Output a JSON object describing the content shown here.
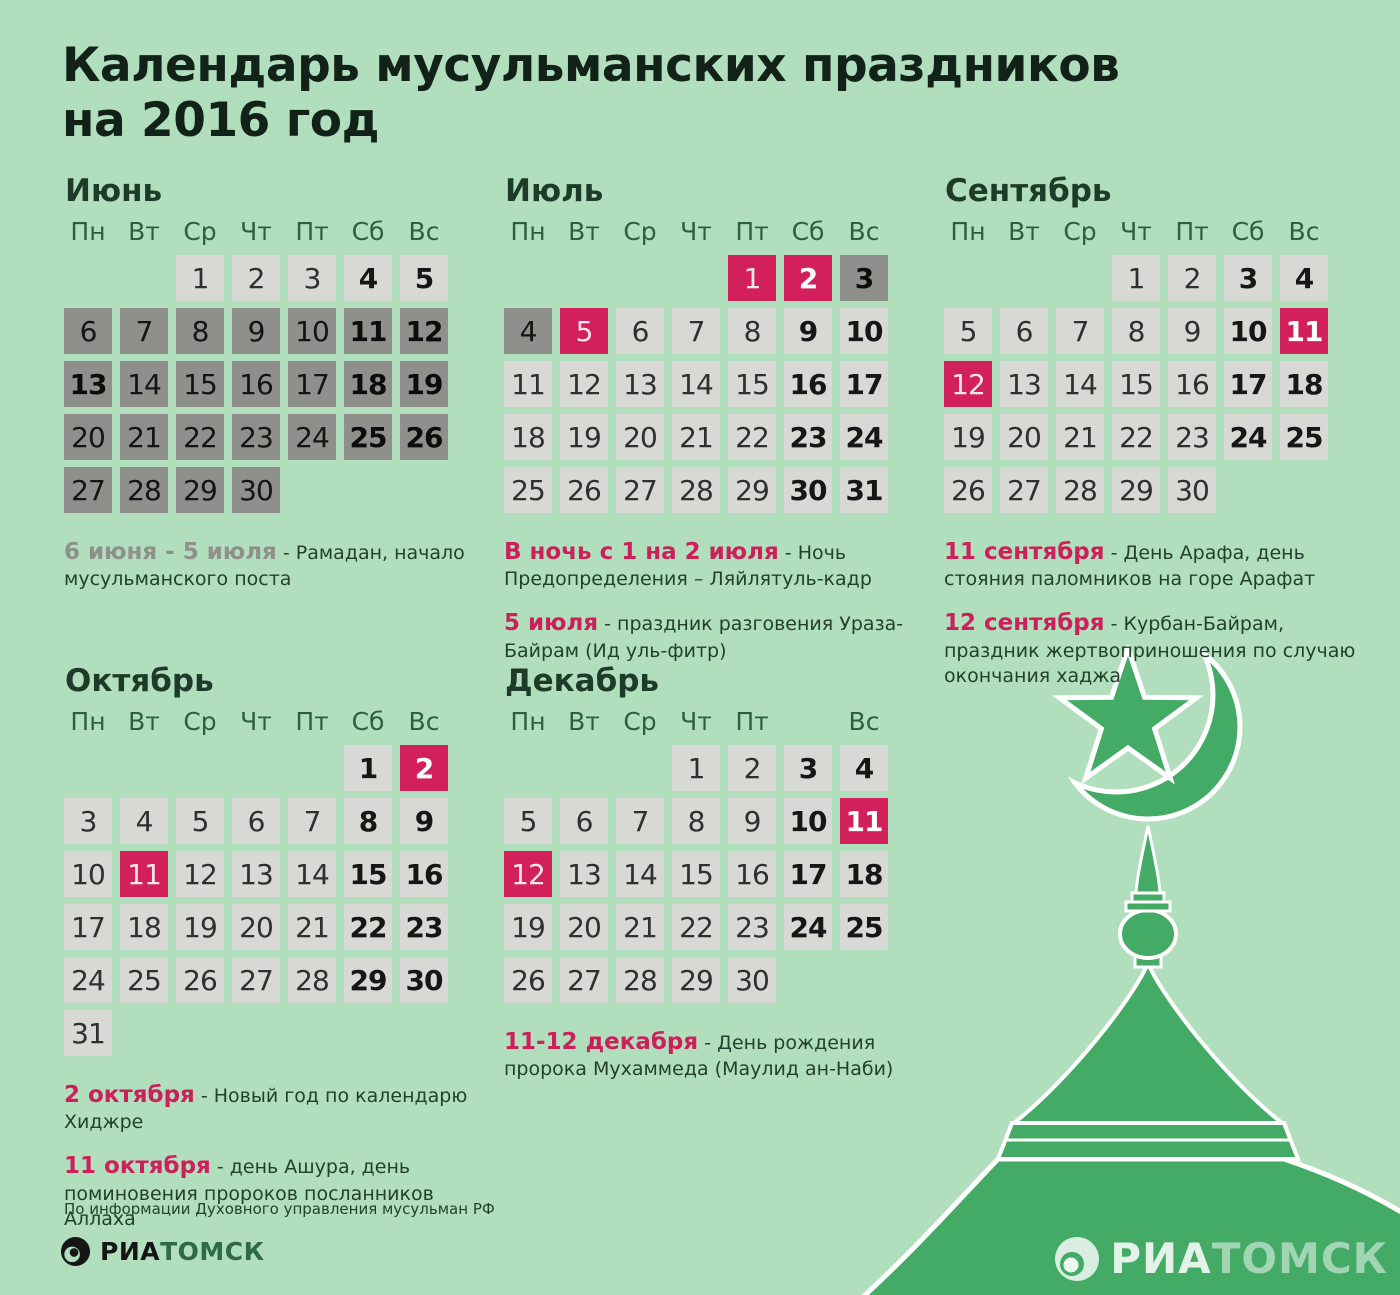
{
  "title": {
    "line1": "Календарь мусульманских праздников",
    "line2": "на 2016 год"
  },
  "note_separator": " - ",
  "source": "По информации Духовного управления мусульман РФ",
  "logo": {
    "ria": "РИА",
    "tomsk": "ТОМСК"
  },
  "watermark": {
    "ria": "РИА",
    "tomsk": "ТОМСК"
  },
  "colors": {
    "background": "#b1dfbe",
    "regular_day_cell": "#d8d8d4",
    "ramadan_day_cell": "#8f8f8c",
    "holiday_cell": "#d2205c",
    "mosque_green": "#44ab66",
    "note_date_red": "#cb2059",
    "note_date_gray": "#8f8f8c",
    "weekday_green": "#2c5f40"
  },
  "months": [
    {
      "id": "june",
      "name": "Июнь",
      "weekdays": [
        "Пн",
        "Вт",
        "Ср",
        "Чт",
        "Пт",
        "Сб",
        "Вс"
      ],
      "weeks": [
        [
          null,
          null,
          {
            "d": "1",
            "s": "light"
          },
          {
            "d": "2",
            "s": "light"
          },
          {
            "d": "3",
            "s": "light"
          },
          {
            "d": "4",
            "s": "light",
            "b": true
          },
          {
            "d": "5",
            "s": "light",
            "b": true
          }
        ],
        [
          {
            "d": "6",
            "s": "dark"
          },
          {
            "d": "7",
            "s": "dark"
          },
          {
            "d": "8",
            "s": "dark"
          },
          {
            "d": "9",
            "s": "dark"
          },
          {
            "d": "10",
            "s": "dark"
          },
          {
            "d": "11",
            "s": "dark",
            "b": true
          },
          {
            "d": "12",
            "s": "dark",
            "b": true
          }
        ],
        [
          {
            "d": "13",
            "s": "dark",
            "b": true
          },
          {
            "d": "14",
            "s": "dark"
          },
          {
            "d": "15",
            "s": "dark"
          },
          {
            "d": "16",
            "s": "dark"
          },
          {
            "d": "17",
            "s": "dark"
          },
          {
            "d": "18",
            "s": "dark",
            "b": true
          },
          {
            "d": "19",
            "s": "dark",
            "b": true
          }
        ],
        [
          {
            "d": "20",
            "s": "dark"
          },
          {
            "d": "21",
            "s": "dark"
          },
          {
            "d": "22",
            "s": "dark"
          },
          {
            "d": "23",
            "s": "dark"
          },
          {
            "d": "24",
            "s": "dark"
          },
          {
            "d": "25",
            "s": "dark",
            "b": true
          },
          {
            "d": "26",
            "s": "dark",
            "b": true
          }
        ],
        [
          {
            "d": "27",
            "s": "dark"
          },
          {
            "d": "28",
            "s": "dark"
          },
          {
            "d": "29",
            "s": "dark"
          },
          {
            "d": "30",
            "s": "dark"
          },
          null,
          null,
          null
        ]
      ],
      "notes": [
        {
          "date": "6 июня - 5 июля",
          "style": "gray",
          "text": "Рамадан, начало мусульманского поста"
        }
      ]
    },
    {
      "id": "july",
      "name": "Июль",
      "weekdays": [
        "Пн",
        "Вт",
        "Ср",
        "Чт",
        "Пт",
        "Сб",
        "Вс"
      ],
      "weeks": [
        [
          null,
          null,
          null,
          null,
          {
            "d": "1",
            "s": "red"
          },
          {
            "d": "2",
            "s": "red",
            "b": true
          },
          {
            "d": "3",
            "s": "dark",
            "b": true
          }
        ],
        [
          {
            "d": "4",
            "s": "dark"
          },
          {
            "d": "5",
            "s": "red"
          },
          {
            "d": "6",
            "s": "light"
          },
          {
            "d": "7",
            "s": "light"
          },
          {
            "d": "8",
            "s": "light"
          },
          {
            "d": "9",
            "s": "light",
            "b": true
          },
          {
            "d": "10",
            "s": "light",
            "b": true
          }
        ],
        [
          {
            "d": "11",
            "s": "light"
          },
          {
            "d": "12",
            "s": "light"
          },
          {
            "d": "13",
            "s": "light"
          },
          {
            "d": "14",
            "s": "light"
          },
          {
            "d": "15",
            "s": "light"
          },
          {
            "d": "16",
            "s": "light",
            "b": true
          },
          {
            "d": "17",
            "s": "light",
            "b": true
          }
        ],
        [
          {
            "d": "18",
            "s": "light"
          },
          {
            "d": "19",
            "s": "light"
          },
          {
            "d": "20",
            "s": "light"
          },
          {
            "d": "21",
            "s": "light"
          },
          {
            "d": "22",
            "s": "light"
          },
          {
            "d": "23",
            "s": "light",
            "b": true
          },
          {
            "d": "24",
            "s": "light",
            "b": true
          }
        ],
        [
          {
            "d": "25",
            "s": "light"
          },
          {
            "d": "26",
            "s": "light"
          },
          {
            "d": "27",
            "s": "light"
          },
          {
            "d": "28",
            "s": "light"
          },
          {
            "d": "29",
            "s": "light"
          },
          {
            "d": "30",
            "s": "light",
            "b": true
          },
          {
            "d": "31",
            "s": "light",
            "b": true
          }
        ]
      ],
      "notes": [
        {
          "date": "В ночь с 1 на 2 июля",
          "style": "red",
          "text": "Ночь Предопределения – Ляйлятуль-кадр"
        },
        {
          "date": "5 июля",
          "style": "red",
          "text": "праздник разговения Ураза-Байрам (Ид уль-фитр)"
        }
      ]
    },
    {
      "id": "september",
      "name": "Сентябрь",
      "weekdays": [
        "Пн",
        "Вт",
        "Ср",
        "Чт",
        "Пт",
        "Сб",
        "Вс"
      ],
      "weeks": [
        [
          null,
          null,
          null,
          {
            "d": "1",
            "s": "light"
          },
          {
            "d": "2",
            "s": "light"
          },
          {
            "d": "3",
            "s": "light",
            "b": true
          },
          {
            "d": "4",
            "s": "light",
            "b": true
          }
        ],
        [
          {
            "d": "5",
            "s": "light"
          },
          {
            "d": "6",
            "s": "light"
          },
          {
            "d": "7",
            "s": "light"
          },
          {
            "d": "8",
            "s": "light"
          },
          {
            "d": "9",
            "s": "light"
          },
          {
            "d": "10",
            "s": "light",
            "b": true
          },
          {
            "d": "11",
            "s": "red",
            "b": true
          }
        ],
        [
          {
            "d": "12",
            "s": "red"
          },
          {
            "d": "13",
            "s": "light"
          },
          {
            "d": "14",
            "s": "light"
          },
          {
            "d": "15",
            "s": "light"
          },
          {
            "d": "16",
            "s": "light"
          },
          {
            "d": "17",
            "s": "light",
            "b": true
          },
          {
            "d": "18",
            "s": "light",
            "b": true
          }
        ],
        [
          {
            "d": "19",
            "s": "light"
          },
          {
            "d": "20",
            "s": "light"
          },
          {
            "d": "21",
            "s": "light"
          },
          {
            "d": "22",
            "s": "light"
          },
          {
            "d": "23",
            "s": "light"
          },
          {
            "d": "24",
            "s": "light",
            "b": true
          },
          {
            "d": "25",
            "s": "light",
            "b": true
          }
        ],
        [
          {
            "d": "26",
            "s": "light"
          },
          {
            "d": "27",
            "s": "light"
          },
          {
            "d": "28",
            "s": "light"
          },
          {
            "d": "29",
            "s": "light"
          },
          {
            "d": "30",
            "s": "light"
          },
          null,
          null
        ]
      ],
      "notes": [
        {
          "date": "11 сентября",
          "style": "red",
          "text": "День Арафа, день стояния паломников на горе Арафат"
        },
        {
          "date": "12 сентября",
          "style": "red",
          "text": "Курбан-Байрам, праздник жертвоприношения по случаю окончания хаджа"
        }
      ]
    },
    {
      "id": "october",
      "name": "Октябрь",
      "weekdays": [
        "Пн",
        "Вт",
        "Ср",
        "Чт",
        "Пт",
        "Сб",
        "Вс"
      ],
      "weeks": [
        [
          null,
          null,
          null,
          null,
          null,
          {
            "d": "1",
            "s": "light",
            "b": true
          },
          {
            "d": "2",
            "s": "red",
            "b": true
          }
        ],
        [
          {
            "d": "3",
            "s": "light"
          },
          {
            "d": "4",
            "s": "light"
          },
          {
            "d": "5",
            "s": "light"
          },
          {
            "d": "6",
            "s": "light"
          },
          {
            "d": "7",
            "s": "light"
          },
          {
            "d": "8",
            "s": "light",
            "b": true
          },
          {
            "d": "9",
            "s": "light",
            "b": true
          }
        ],
        [
          {
            "d": "10",
            "s": "light"
          },
          {
            "d": "11",
            "s": "red"
          },
          {
            "d": "12",
            "s": "light"
          },
          {
            "d": "13",
            "s": "light"
          },
          {
            "d": "14",
            "s": "light"
          },
          {
            "d": "15",
            "s": "light",
            "b": true
          },
          {
            "d": "16",
            "s": "light",
            "b": true
          }
        ],
        [
          {
            "d": "17",
            "s": "light"
          },
          {
            "d": "18",
            "s": "light"
          },
          {
            "d": "19",
            "s": "light"
          },
          {
            "d": "20",
            "s": "light"
          },
          {
            "d": "21",
            "s": "light"
          },
          {
            "d": "22",
            "s": "light",
            "b": true
          },
          {
            "d": "23",
            "s": "light",
            "b": true
          }
        ],
        [
          {
            "d": "24",
            "s": "light"
          },
          {
            "d": "25",
            "s": "light"
          },
          {
            "d": "26",
            "s": "light"
          },
          {
            "d": "27",
            "s": "light"
          },
          {
            "d": "28",
            "s": "light"
          },
          {
            "d": "29",
            "s": "light",
            "b": true
          },
          {
            "d": "30",
            "s": "light",
            "b": true
          }
        ],
        [
          {
            "d": "31",
            "s": "light"
          },
          null,
          null,
          null,
          null,
          null,
          null
        ]
      ],
      "notes": [
        {
          "date": "2 октября",
          "style": "red",
          "text": "Новый год по календарю Хиджре"
        },
        {
          "date": "11 октября",
          "style": "red",
          "text": "день Ашура, день поминовения пророков посланников Аллаха"
        }
      ]
    },
    {
      "id": "december",
      "name": "Декабрь",
      "weekdays": [
        "Пн",
        "Вт",
        "Ср",
        "Чт",
        "Пт",
        "",
        "Вс"
      ],
      "weeks": [
        [
          null,
          null,
          null,
          {
            "d": "1",
            "s": "light"
          },
          {
            "d": "2",
            "s": "light"
          },
          {
            "d": "3",
            "s": "light",
            "b": true
          },
          {
            "d": "4",
            "s": "light",
            "b": true
          }
        ],
        [
          {
            "d": "5",
            "s": "light"
          },
          {
            "d": "6",
            "s": "light"
          },
          {
            "d": "7",
            "s": "light"
          },
          {
            "d": "8",
            "s": "light"
          },
          {
            "d": "9",
            "s": "light"
          },
          {
            "d": "10",
            "s": "light",
            "b": true
          },
          {
            "d": "11",
            "s": "red",
            "b": true
          }
        ],
        [
          {
            "d": "12",
            "s": "red"
          },
          {
            "d": "13",
            "s": "light"
          },
          {
            "d": "14",
            "s": "light"
          },
          {
            "d": "15",
            "s": "light"
          },
          {
            "d": "16",
            "s": "light"
          },
          {
            "d": "17",
            "s": "light",
            "b": true
          },
          {
            "d": "18",
            "s": "light",
            "b": true
          }
        ],
        [
          {
            "d": "19",
            "s": "light"
          },
          {
            "d": "20",
            "s": "light"
          },
          {
            "d": "21",
            "s": "light"
          },
          {
            "d": "22",
            "s": "light"
          },
          {
            "d": "23",
            "s": "light"
          },
          {
            "d": "24",
            "s": "light",
            "b": true
          },
          {
            "d": "25",
            "s": "light",
            "b": true
          }
        ],
        [
          {
            "d": "26",
            "s": "light"
          },
          {
            "d": "27",
            "s": "light"
          },
          {
            "d": "28",
            "s": "light"
          },
          {
            "d": "29",
            "s": "light"
          },
          {
            "d": "30",
            "s": "light"
          },
          null,
          null
        ]
      ],
      "notes": [
        {
          "date": "11-12 декабря",
          "style": "red",
          "text": "День рождения пророка Мухаммеда (Маулид ан-Наби)"
        }
      ]
    }
  ]
}
